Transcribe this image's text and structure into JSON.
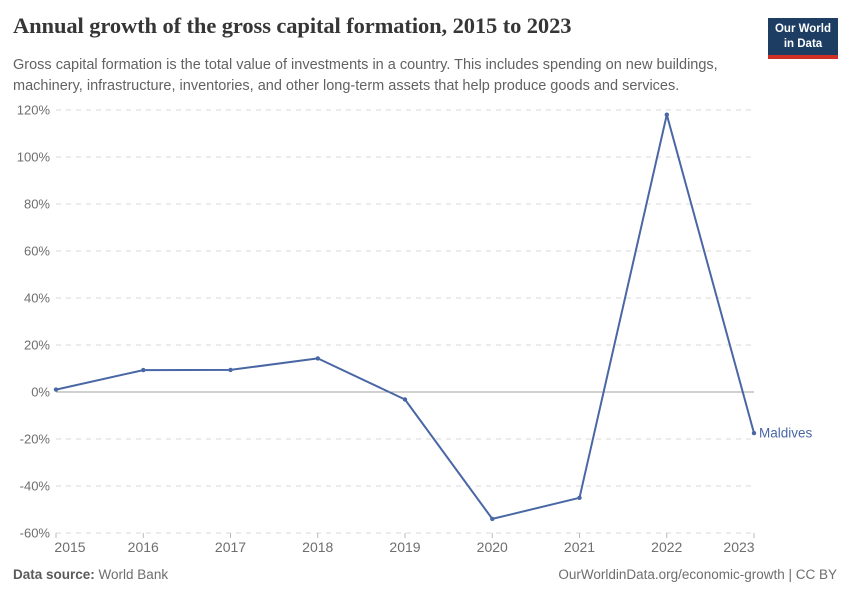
{
  "header": {
    "title": "Annual growth of the gross capital formation, 2015 to 2023",
    "subtitle": "Gross capital formation is the total value of investments in a country. This includes spending on new buildings, machinery, infrastructure, inventories, and other long-term assets that help produce goods and services.",
    "logo_line1": "Our World",
    "logo_line2": "in Data"
  },
  "chart_data": {
    "type": "line",
    "title": "Annual growth of the gross capital formation, 2015 to 2023",
    "x": [
      2015,
      2016,
      2017,
      2018,
      2019,
      2020,
      2021,
      2022,
      2023
    ],
    "series": [
      {
        "name": "Maldives",
        "color": "#4a67a5",
        "values": [
          1.0,
          9.3,
          9.4,
          14.3,
          -3.2,
          -54.0,
          -45.0,
          118.0,
          -17.5
        ]
      }
    ],
    "xlabel": "",
    "ylabel": "",
    "ylim": [
      -60,
      120
    ],
    "yticks": [
      120,
      100,
      80,
      60,
      40,
      20,
      0,
      -20,
      -40,
      -60
    ],
    "ytick_suffix": "%",
    "grid": "horizontal-dashed",
    "zero_line": true,
    "legend_position": "end-of-line-label",
    "end_label": "Maldives"
  },
  "footer": {
    "datasource_label": "Data source:",
    "datasource_value": "World Bank",
    "link": "OurWorldinData.org/economic-growth",
    "divider": " | ",
    "license": "CC BY"
  },
  "colors": {
    "series_line": "#4a67a5",
    "grid_line": "#d9d9d9",
    "zero_line": "#a0a0a0",
    "axis_text": "#6e6e6e",
    "logo_navy": "#1d3d63",
    "logo_red": "#cf3127",
    "title_text": "#363636",
    "subtitle_text": "#626262"
  }
}
